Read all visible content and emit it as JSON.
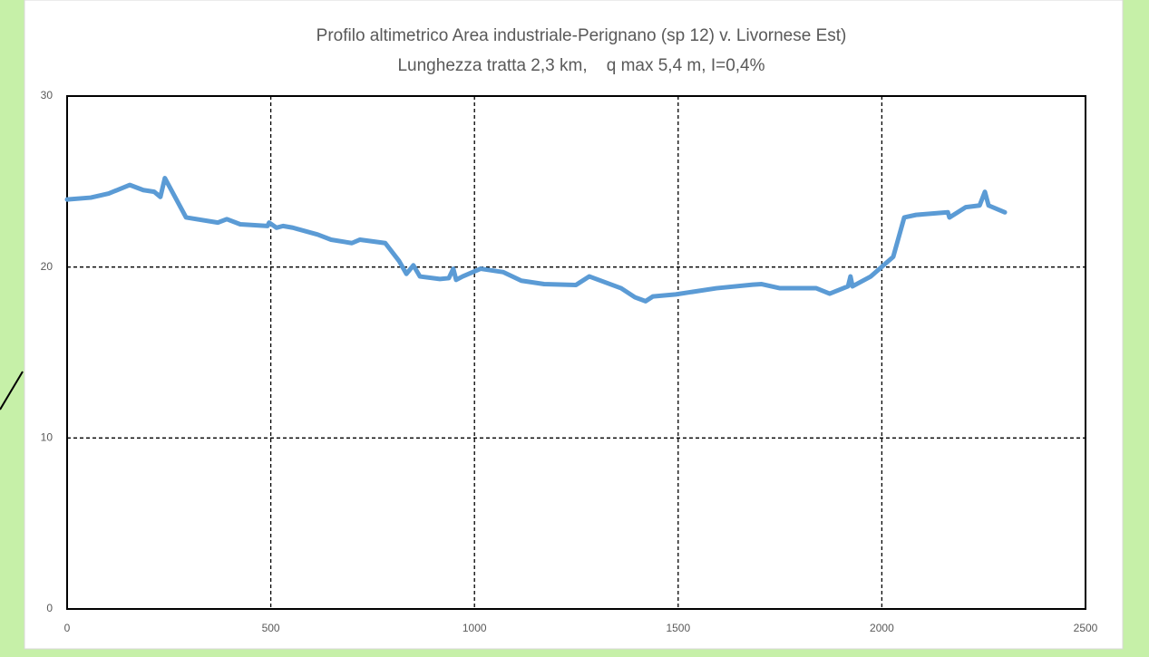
{
  "chart_data": {
    "type": "line",
    "title": "Profilo altimetrico Area industriale-Perignano (sp 12) v. Livornese Est)",
    "subtitle": "Lunghezza tratta 2,3 km,    q max 5,4 m, I=0,4%",
    "x": [
      0,
      58,
      102,
      154,
      187,
      214,
      229,
      240,
      292,
      370,
      392,
      425,
      492,
      496,
      514,
      530,
      554,
      615,
      648,
      699,
      719,
      781,
      815,
      833,
      850,
      866,
      915,
      937,
      948,
      955,
      971,
      1015,
      1071,
      1115,
      1171,
      1249,
      1282,
      1360,
      1394,
      1420,
      1438,
      1494,
      1594,
      1683,
      1705,
      1750,
      1839,
      1872,
      1917,
      1923,
      1928,
      1973,
      2028,
      2055,
      2084,
      2162,
      2166,
      2206,
      2240,
      2253,
      2262,
      2302
    ],
    "series": [
      {
        "name": "profilo",
        "color": "#5b9bd5",
        "values": [
          23.95,
          24.06,
          24.3,
          24.8,
          24.5,
          24.4,
          24.1,
          25.2,
          22.9,
          22.6,
          22.8,
          22.5,
          22.4,
          22.6,
          22.3,
          22.4,
          22.3,
          21.9,
          21.6,
          21.4,
          21.6,
          21.4,
          20.35,
          19.6,
          20.1,
          19.45,
          19.3,
          19.35,
          19.9,
          19.25,
          19.45,
          19.9,
          19.7,
          19.2,
          19.0,
          18.95,
          19.45,
          18.76,
          18.23,
          18.0,
          18.28,
          18.4,
          18.76,
          18.97,
          19.0,
          18.76,
          18.76,
          18.44,
          18.87,
          19.45,
          18.87,
          19.45,
          20.6,
          22.9,
          23.05,
          23.2,
          22.9,
          23.5,
          23.6,
          24.4,
          23.6,
          23.2
        ]
      }
    ],
    "xlim": [
      0,
      2500
    ],
    "xticks": [
      0,
      500,
      1000,
      1500,
      2000,
      2500
    ],
    "ylim": [
      0,
      30
    ],
    "yticks": [
      0,
      10,
      20,
      30
    ],
    "grid": true
  }
}
